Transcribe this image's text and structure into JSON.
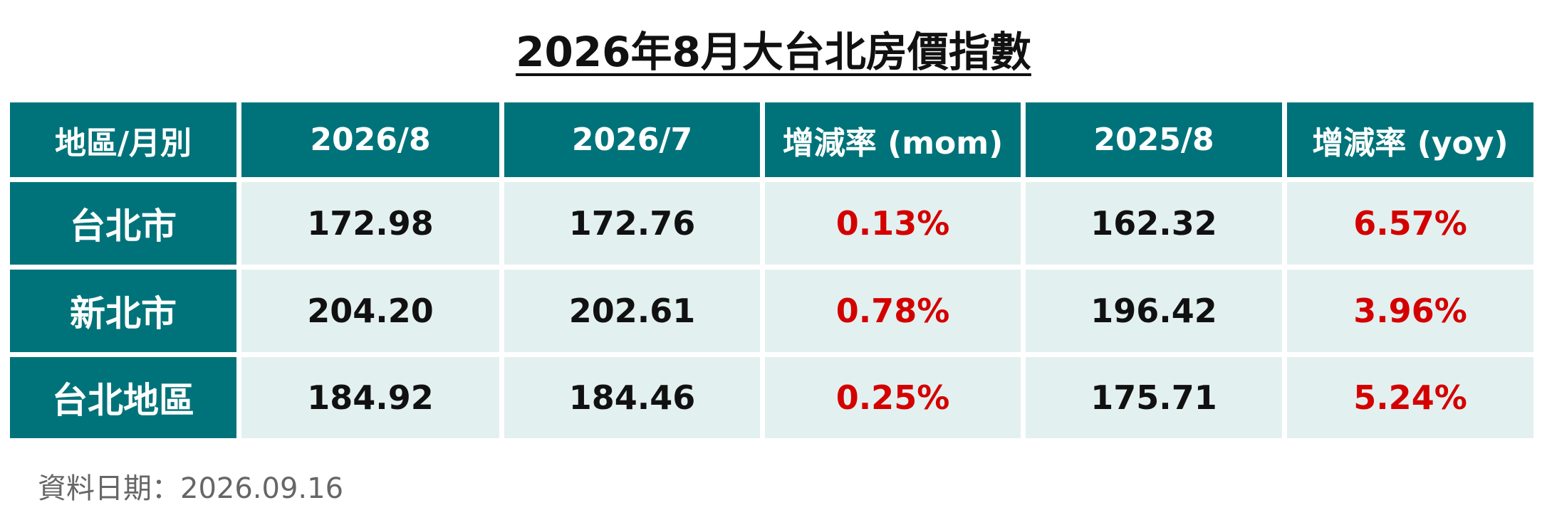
{
  "title": "2026年8月大台北房價指數",
  "table": {
    "headers": [
      "地區/月別",
      "2026/8",
      "2026/7",
      "增減率 (mom)",
      "2025/8",
      "增減率 (yoy)"
    ],
    "rows": [
      [
        "台北市",
        "172.98",
        "172.76",
        "0.13%",
        "162.32",
        "6.57%"
      ],
      [
        "新北市",
        "204.20",
        "202.61",
        "0.78%",
        "196.42",
        "3.96%"
      ],
      [
        "台北地區",
        "184.92",
        "184.46",
        "0.25%",
        "175.71",
        "5.24%"
      ]
    ]
  },
  "footnote": "資料日期：2026.09.16"
}
